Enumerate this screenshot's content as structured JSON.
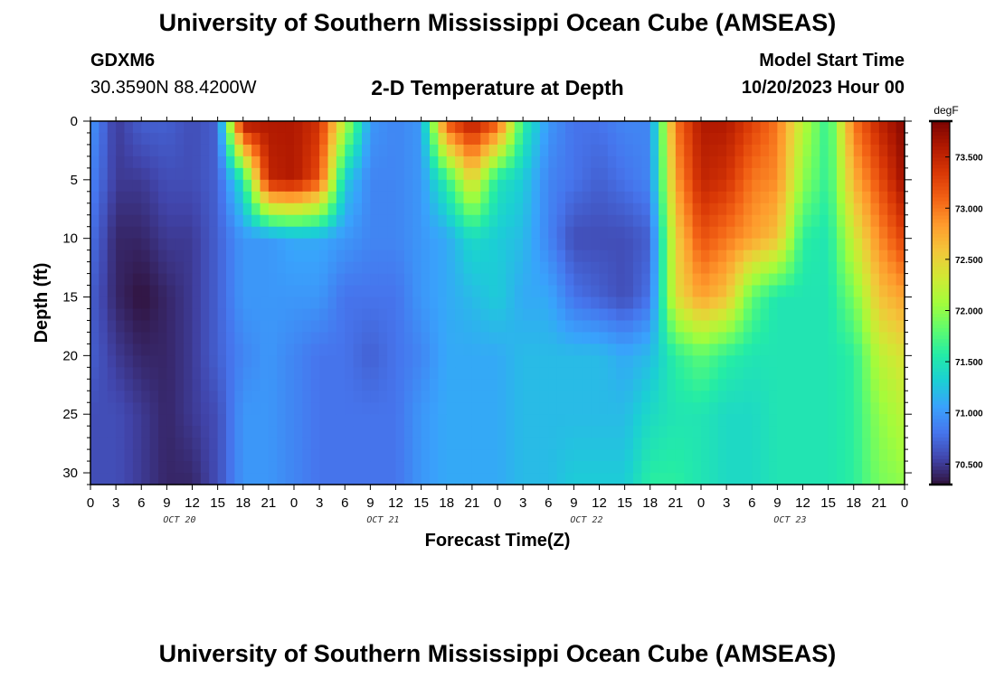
{
  "header": {
    "title": "University of Southern Mississippi Ocean Cube (AMSEAS)",
    "station": "GDXM6",
    "coords": "30.3590N  88.4200W",
    "subtitle": "2-D Temperature at Depth",
    "model_start_label": "Model Start Time",
    "model_start_value": "10/20/2023 Hour 00"
  },
  "footer": {
    "title": "University of Southern Mississippi Ocean Cube (AMSEAS)"
  },
  "chart_data": {
    "type": "heatmap",
    "title": "2-D Temperature at Depth",
    "xlabel": "Forecast Time(Z)",
    "ylabel": "Depth (ft)",
    "x_hours_range": [
      0,
      96
    ],
    "x_tick_labels": [
      "0",
      "3",
      "6",
      "9",
      "12",
      "15",
      "18",
      "21",
      "0",
      "3",
      "6",
      "9",
      "12",
      "15",
      "18",
      "21",
      "0",
      "3",
      "6",
      "9",
      "12",
      "15",
      "18",
      "21",
      "0",
      "3",
      "6",
      "9",
      "12",
      "15",
      "18",
      "21",
      "0"
    ],
    "day_labels": [
      "OCT 20",
      "OCT 21",
      "OCT 22",
      "OCT 23"
    ],
    "ylim": [
      0,
      31
    ],
    "y_ticks": [
      0,
      5,
      10,
      15,
      20,
      25,
      30
    ],
    "colorbar": {
      "unit": "degF",
      "range": [
        70.3,
        73.85
      ],
      "ticks": [
        70.5,
        71.0,
        71.5,
        72.0,
        72.5,
        73.0,
        73.5
      ],
      "tick_labels": [
        "70.500",
        "71.000",
        "71.500",
        "72.000",
        "72.500",
        "73.000",
        "73.500"
      ],
      "colors": [
        "#30123b",
        "#4145ab",
        "#4675ed",
        "#39a2fc",
        "#1bcfd4",
        "#24eca6",
        "#61fc6c",
        "#a4fc3b",
        "#d1e834",
        "#f3c63a",
        "#fe9b2d",
        "#f36315",
        "#d93806",
        "#b11901",
        "#7a0402"
      ]
    },
    "grid": false,
    "legend": "colorbar-right",
    "depths_ft": [
      0,
      5,
      10,
      15,
      20,
      25,
      31
    ],
    "times_hours": [
      0,
      3,
      6,
      9,
      12,
      15,
      18,
      21,
      24,
      27,
      30,
      33,
      36,
      39,
      42,
      45,
      48,
      51,
      54,
      57,
      60,
      63,
      66,
      69,
      72,
      75,
      78,
      81,
      84,
      87,
      90,
      93,
      96
    ],
    "values_degF": [
      [
        71.0,
        70.9,
        70.8,
        70.7,
        70.7,
        70.6,
        70.6
      ],
      [
        70.5,
        70.5,
        70.4,
        70.4,
        70.5,
        70.6,
        70.6
      ],
      [
        70.7,
        70.5,
        70.4,
        70.3,
        70.4,
        70.5,
        70.5
      ],
      [
        70.7,
        70.6,
        70.5,
        70.4,
        70.4,
        70.4,
        70.4
      ],
      [
        70.6,
        70.6,
        70.5,
        70.5,
        70.5,
        70.5,
        70.4
      ],
      [
        70.7,
        70.7,
        70.7,
        70.7,
        70.7,
        70.6,
        70.6
      ],
      [
        73.7,
        71.5,
        71.0,
        71.0,
        70.9,
        71.0,
        71.0
      ],
      [
        73.6,
        73.5,
        71.0,
        71.0,
        71.0,
        71.0,
        71.0
      ],
      [
        73.6,
        73.6,
        71.1,
        71.0,
        70.9,
        70.9,
        70.9
      ],
      [
        73.4,
        73.2,
        71.1,
        71.0,
        70.8,
        70.8,
        70.8
      ],
      [
        72.2,
        71.3,
        71.0,
        70.8,
        70.8,
        70.8,
        70.8
      ],
      [
        71.0,
        70.9,
        70.9,
        70.8,
        70.7,
        70.8,
        70.8
      ],
      [
        70.9,
        70.9,
        70.9,
        70.8,
        70.8,
        70.8,
        70.8
      ],
      [
        71.0,
        71.0,
        71.0,
        71.0,
        70.9,
        71.0,
        71.0
      ],
      [
        73.2,
        71.6,
        71.1,
        71.1,
        71.1,
        71.1,
        71.1
      ],
      [
        73.6,
        72.5,
        71.4,
        71.2,
        71.1,
        71.1,
        71.1
      ],
      [
        73.2,
        71.5,
        71.3,
        71.3,
        71.1,
        71.1,
        71.1
      ],
      [
        71.6,
        71.3,
        71.2,
        71.1,
        71.2,
        71.2,
        71.2
      ],
      [
        71.0,
        70.9,
        70.9,
        71.1,
        71.2,
        71.2,
        71.2
      ],
      [
        70.8,
        70.8,
        70.6,
        70.8,
        71.2,
        71.2,
        71.3
      ],
      [
        70.8,
        70.7,
        70.6,
        70.7,
        71.2,
        71.2,
        71.3
      ],
      [
        70.9,
        70.8,
        70.6,
        70.6,
        71.1,
        71.2,
        71.3
      ],
      [
        70.9,
        70.9,
        70.7,
        70.8,
        71.2,
        71.4,
        71.6
      ],
      [
        73.0,
        72.8,
        72.5,
        72.4,
        71.6,
        71.5,
        71.6
      ],
      [
        73.6,
        73.5,
        73.2,
        72.8,
        71.8,
        71.5,
        71.5
      ],
      [
        73.6,
        73.4,
        73.0,
        72.6,
        71.6,
        71.4,
        71.4
      ],
      [
        73.3,
        73.0,
        72.8,
        71.8,
        71.5,
        71.4,
        71.4
      ],
      [
        73.0,
        72.9,
        72.6,
        71.5,
        71.5,
        71.5,
        71.5
      ],
      [
        72.2,
        72.0,
        71.6,
        71.5,
        71.5,
        71.5,
        71.5
      ],
      [
        71.6,
        71.6,
        71.5,
        71.5,
        71.5,
        71.5,
        71.5
      ],
      [
        73.0,
        72.7,
        72.3,
        71.9,
        71.6,
        71.6,
        71.6
      ],
      [
        73.5,
        73.2,
        72.9,
        72.6,
        72.2,
        72.0,
        71.9
      ],
      [
        73.8,
        73.7,
        73.3,
        72.8,
        72.4,
        72.2,
        72.0
      ]
    ]
  }
}
